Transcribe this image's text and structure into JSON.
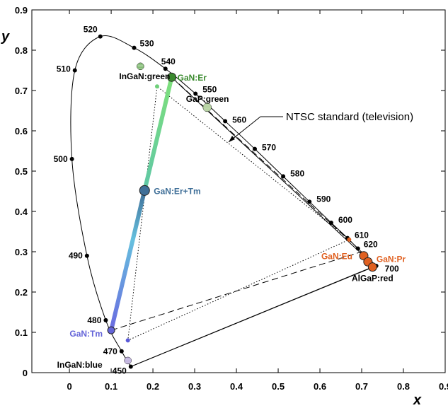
{
  "chart_data": {
    "type": "scatter",
    "xlabel": "x",
    "ylabel": "y",
    "xlim": [
      -0.09,
      0.9
    ],
    "ylim": [
      0,
      0.9
    ],
    "x_ticks": [
      "0",
      "0.1",
      "0.2",
      "0.3",
      "0.4",
      "0.5",
      "0.6",
      "0.7",
      "0.8",
      "0.9"
    ],
    "y_ticks": [
      "0",
      "0.1",
      "0.2",
      "0.3",
      "0.4",
      "0.5",
      "0.6",
      "0.7",
      "0.8",
      "0.9"
    ],
    "spectral_locus": [
      {
        "label": "450",
        "x": 0.147,
        "y": 0.015
      },
      {
        "label": "470",
        "x": 0.125,
        "y": 0.053
      },
      {
        "label": "480",
        "x": 0.087,
        "y": 0.13
      },
      {
        "label": "490",
        "x": 0.042,
        "y": 0.29
      },
      {
        "label": "500",
        "x": 0.006,
        "y": 0.53
      },
      {
        "label": "510",
        "x": 0.013,
        "y": 0.75
      },
      {
        "label": "520",
        "x": 0.074,
        "y": 0.834
      },
      {
        "label": "530",
        "x": 0.155,
        "y": 0.806
      },
      {
        "label": "540",
        "x": 0.23,
        "y": 0.754
      },
      {
        "label": "550",
        "x": 0.302,
        "y": 0.692
      },
      {
        "label": "560",
        "x": 0.373,
        "y": 0.624
      },
      {
        "label": "570",
        "x": 0.444,
        "y": 0.555
      },
      {
        "label": "580",
        "x": 0.512,
        "y": 0.487
      },
      {
        "label": "590",
        "x": 0.575,
        "y": 0.424
      },
      {
        "label": "600",
        "x": 0.627,
        "y": 0.372
      },
      {
        "label": "610",
        "x": 0.666,
        "y": 0.334
      },
      {
        "label": "620",
        "x": 0.691,
        "y": 0.308
      },
      {
        "label": "700",
        "x": 0.735,
        "y": 0.265
      }
    ],
    "points": [
      {
        "name": "GaN:Er",
        "x": 0.245,
        "y": 0.733,
        "color": "#3a8a2e",
        "labelColor": "#3a8a2e"
      },
      {
        "name": "GaN:Er+Tm",
        "x": 0.18,
        "y": 0.452,
        "color": "#3f6f98",
        "labelColor": "#3f6f98"
      },
      {
        "name": "GaN:Tm",
        "x": 0.1,
        "y": 0.105,
        "color": "#6464d8",
        "labelColor": "#6464d8"
      },
      {
        "name": "GaN:Eu",
        "x": 0.705,
        "y": 0.29,
        "color": "#e06020",
        "labelColor": "#e06020"
      },
      {
        "name": "GaN:Pr",
        "x": 0.715,
        "y": 0.275,
        "color": "#e06020",
        "labelColor": "#e06020"
      },
      {
        "name": "AlGaP:red",
        "x": 0.726,
        "y": 0.262,
        "color": "#e06020",
        "labelColor": "#000000"
      },
      {
        "name": "InGaN:green",
        "x": 0.17,
        "y": 0.76,
        "color": "#7ab86a",
        "labelColor": "#000000"
      },
      {
        "name": "GaP:green",
        "x": 0.33,
        "y": 0.658,
        "color": "#a7c98f",
        "labelColor": "#000000"
      },
      {
        "name": "InGaN:blue",
        "x": 0.14,
        "y": 0.03,
        "color": "#b6a6d8",
        "labelColor": "#000000"
      }
    ],
    "ntsc_triangle": [
      {
        "x": 0.67,
        "y": 0.33
      },
      {
        "x": 0.21,
        "y": 0.71
      },
      {
        "x": 0.14,
        "y": 0.08
      }
    ],
    "annotations": {
      "ntsc_label": "NTSC standard (television)"
    }
  }
}
